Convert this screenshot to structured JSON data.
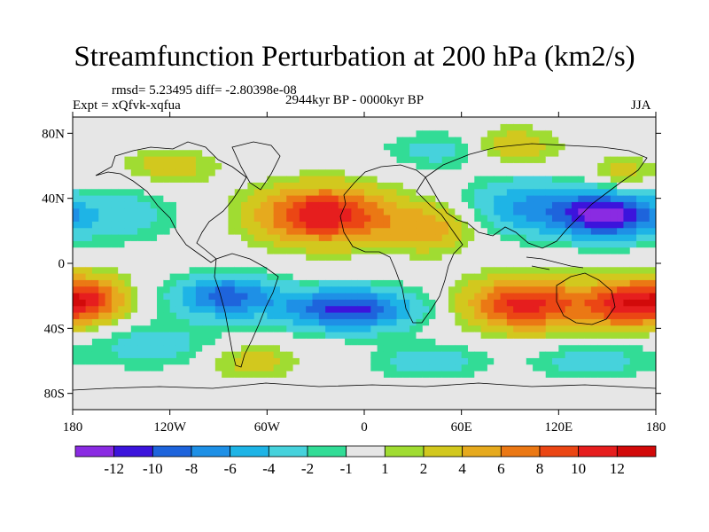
{
  "header": {
    "title": "Streamfunction Perturbation at 200 hPa (km2/s)",
    "stats": "rmsd= 5.23495 diff= -2.80398e-08",
    "experiment": "Expt = xQfvk-xqfua",
    "period": "2944kyr BP - 0000kyr BP",
    "season": "JJA"
  },
  "chart_data": {
    "type": "heatmap",
    "title": "Streamfunction Perturbation at 200 hPa (km2/s)",
    "subtitle": "2944kyr BP - 0000kyr BP",
    "variable": "streamfunction perturbation",
    "units": "km2/s",
    "xlabel": "",
    "ylabel": "",
    "xlim": [
      -180,
      180
    ],
    "ylim": [
      -90,
      90
    ],
    "x_ticks": [
      -180,
      -120,
      -60,
      0,
      60,
      120,
      180
    ],
    "x_tick_labels": [
      "180",
      "120W",
      "60W",
      "0",
      "60E",
      "120E",
      "180"
    ],
    "y_ticks": [
      80,
      40,
      0,
      -40,
      -80
    ],
    "y_tick_labels": [
      "80N",
      "40N",
      "0",
      "40S",
      "80S"
    ],
    "grid": false,
    "colorbar": {
      "placement": "bottom",
      "levels": [
        -12,
        -10,
        -8,
        -6,
        -4,
        -2,
        -1,
        1,
        2,
        4,
        6,
        8,
        10,
        12
      ],
      "level_labels": [
        "-12",
        "-10",
        "-8",
        "-6",
        "-4",
        "-2",
        "-1",
        "1",
        "2",
        "4",
        "6",
        "8",
        "10",
        "12"
      ],
      "colors": [
        "#8A2BE2",
        "#3C14DC",
        "#1E64DC",
        "#1E90E6",
        "#1EB4E6",
        "#46D2DC",
        "#32DC96",
        "#E6E6E6",
        "#A0DC32",
        "#D2C81E",
        "#E6AA1E",
        "#EB7814",
        "#EB4614",
        "#E61E1E",
        "#D20A0A"
      ]
    },
    "anomaly_centers": [
      {
        "lon": -25,
        "lat": 30,
        "value": 12,
        "sx": 28,
        "sy": 12
      },
      {
        "lon": 40,
        "lat": 22,
        "value": 5,
        "sx": 20,
        "sy": 10
      },
      {
        "lon": 100,
        "lat": -25,
        "value": 11,
        "sx": 25,
        "sy": 11
      },
      {
        "lon": 160,
        "lat": -25,
        "value": 10,
        "sx": 18,
        "sy": 10
      },
      {
        "lon": -170,
        "lat": -22,
        "value": 9,
        "sx": 16,
        "sy": 10
      },
      {
        "lon": 150,
        "lat": 30,
        "value": -13,
        "sx": 22,
        "sy": 10
      },
      {
        "lon": 100,
        "lat": 35,
        "value": -6,
        "sx": 25,
        "sy": 12
      },
      {
        "lon": -10,
        "lat": -28,
        "value": -11,
        "sx": 28,
        "sy": 9
      },
      {
        "lon": -85,
        "lat": -20,
        "value": -9,
        "sx": 22,
        "sy": 9
      },
      {
        "lon": -150,
        "lat": 30,
        "value": -3,
        "sx": 25,
        "sy": 12
      },
      {
        "lon": 50,
        "lat": 70,
        "value": -3,
        "sx": 25,
        "sy": 8
      },
      {
        "lon": 90,
        "lat": 72,
        "value": 4,
        "sx": 20,
        "sy": 8
      },
      {
        "lon": -120,
        "lat": 60,
        "value": 3,
        "sx": 20,
        "sy": 8
      },
      {
        "lon": 160,
        "lat": 55,
        "value": 3,
        "sx": 15,
        "sy": 8
      },
      {
        "lon": -130,
        "lat": -50,
        "value": -3,
        "sx": 30,
        "sy": 10
      },
      {
        "lon": 40,
        "lat": -60,
        "value": -3,
        "sx": 25,
        "sy": 8
      },
      {
        "lon": -70,
        "lat": -60,
        "value": 3,
        "sx": 20,
        "sy": 8
      },
      {
        "lon": 140,
        "lat": -60,
        "value": -3,
        "sx": 25,
        "sy": 8
      }
    ]
  }
}
